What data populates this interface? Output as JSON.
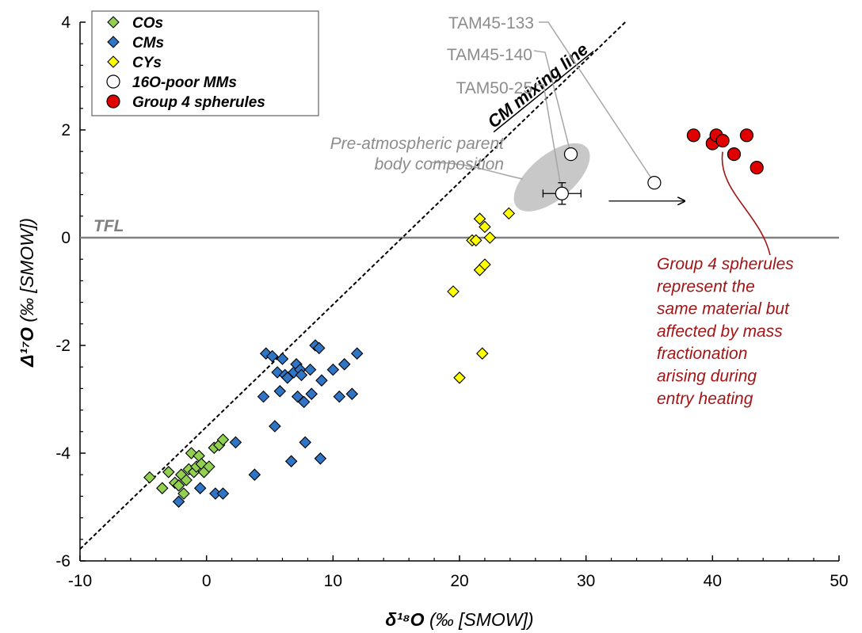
{
  "chart_data": {
    "type": "scatter",
    "xlabel_main": "δ¹⁸O",
    "xlabel_unit": " (‰ [SMOW])",
    "ylabel_main": "Δ¹⁷O",
    "ylabel_unit": " (‰ [SMOW])",
    "xlim": [
      -10,
      50
    ],
    "ylim": [
      -6,
      4
    ],
    "x_ticks": [
      -10,
      0,
      10,
      20,
      30,
      40,
      50
    ],
    "y_ticks": [
      -6,
      -4,
      -2,
      0,
      2,
      4
    ],
    "x_tick_labels": [
      "-10",
      "0",
      "10",
      "20",
      "30",
      "40",
      "50"
    ],
    "y_tick_labels": [
      "-6",
      "-4",
      "-2",
      "0",
      "2",
      "4"
    ],
    "legend_position": "top-left",
    "series": [
      {
        "name": "COs",
        "marker": "diamond",
        "color": "#92d050",
        "points": [
          [
            -4.5,
            -4.45
          ],
          [
            -3.5,
            -4.65
          ],
          [
            -3.0,
            -4.35
          ],
          [
            -2.5,
            -4.55
          ],
          [
            -2.2,
            -4.6
          ],
          [
            -2.0,
            -4.4
          ],
          [
            -1.8,
            -4.75
          ],
          [
            -1.6,
            -4.5
          ],
          [
            -1.4,
            -4.3
          ],
          [
            -1.2,
            -4.0
          ],
          [
            -1.0,
            -4.35
          ],
          [
            -0.8,
            -4.25
          ],
          [
            -0.6,
            -4.05
          ],
          [
            -0.4,
            -4.2
          ],
          [
            -0.2,
            -4.35
          ],
          [
            0.2,
            -4.25
          ],
          [
            0.6,
            -3.9
          ],
          [
            1.0,
            -3.85
          ],
          [
            1.3,
            -3.75
          ]
        ]
      },
      {
        "name": "CMs",
        "marker": "diamond",
        "color": "#2e75c6",
        "points": [
          [
            -2.2,
            -4.9
          ],
          [
            -0.5,
            -4.65
          ],
          [
            0.7,
            -4.75
          ],
          [
            1.3,
            -4.75
          ],
          [
            2.3,
            -3.8
          ],
          [
            3.8,
            -4.4
          ],
          [
            4.5,
            -2.95
          ],
          [
            4.7,
            -2.15
          ],
          [
            5.2,
            -2.2
          ],
          [
            5.4,
            -3.5
          ],
          [
            5.6,
            -2.5
          ],
          [
            5.8,
            -2.85
          ],
          [
            6.0,
            -2.25
          ],
          [
            6.2,
            -2.55
          ],
          [
            6.4,
            -2.6
          ],
          [
            6.7,
            -4.15
          ],
          [
            6.9,
            -2.5
          ],
          [
            7.1,
            -2.35
          ],
          [
            7.2,
            -2.95
          ],
          [
            7.4,
            -2.45
          ],
          [
            7.5,
            -2.55
          ],
          [
            7.7,
            -3.05
          ],
          [
            7.8,
            -3.8
          ],
          [
            8.2,
            -2.45
          ],
          [
            8.3,
            -2.9
          ],
          [
            8.6,
            -2.0
          ],
          [
            8.9,
            -2.05
          ],
          [
            9.0,
            -4.1
          ],
          [
            9.1,
            -2.65
          ],
          [
            10.0,
            -2.45
          ],
          [
            10.5,
            -2.95
          ],
          [
            10.9,
            -2.35
          ],
          [
            11.5,
            -2.9
          ],
          [
            11.9,
            -2.15
          ]
        ]
      },
      {
        "name": "CYs",
        "marker": "diamond",
        "color": "#ffff00",
        "points": [
          [
            19.5,
            -1.0
          ],
          [
            20.0,
            -2.6
          ],
          [
            21.0,
            -0.05
          ],
          [
            21.3,
            -0.05
          ],
          [
            21.6,
            0.35
          ],
          [
            21.6,
            -0.6
          ],
          [
            21.8,
            -2.15
          ],
          [
            22.0,
            0.2
          ],
          [
            22.0,
            -0.5
          ],
          [
            22.4,
            0.0
          ],
          [
            23.9,
            0.45
          ]
        ]
      },
      {
        "name": "16O-poor MMs",
        "marker": "circle",
        "color": "#ffffff",
        "points": [
          [
            28.1,
            0.82
          ],
          [
            28.8,
            1.55
          ],
          [
            35.4,
            1.02
          ]
        ]
      },
      {
        "name": "Group 4 spherules",
        "marker": "circle",
        "color": "#e00000",
        "points": [
          [
            38.5,
            1.9
          ],
          [
            40.0,
            1.75
          ],
          [
            40.3,
            1.9
          ],
          [
            40.8,
            1.8
          ],
          [
            41.7,
            1.55
          ],
          [
            42.7,
            1.9
          ],
          [
            43.5,
            1.3
          ]
        ]
      }
    ],
    "annotations": {
      "mixing_line_label": "CM mixing line",
      "tfl_label": "TFL",
      "sample_labels": [
        "TAM45-133",
        "TAM45-140",
        "TAM50-25"
      ],
      "parent_body_lines": [
        "Pre-atmospheric parent",
        "body composition"
      ],
      "group4_note_lines": [
        "Group 4 spherules",
        "represent the",
        "same material but",
        "affected by mass",
        "fractionation",
        "arising during",
        "entry heating"
      ]
    },
    "colors": {
      "mixing_line": "#000000",
      "tfl_line": "#808080",
      "ellipse_fill": "#c8c8c8",
      "callout": "#a6a6a6",
      "group4_note": "#a31515"
    }
  }
}
